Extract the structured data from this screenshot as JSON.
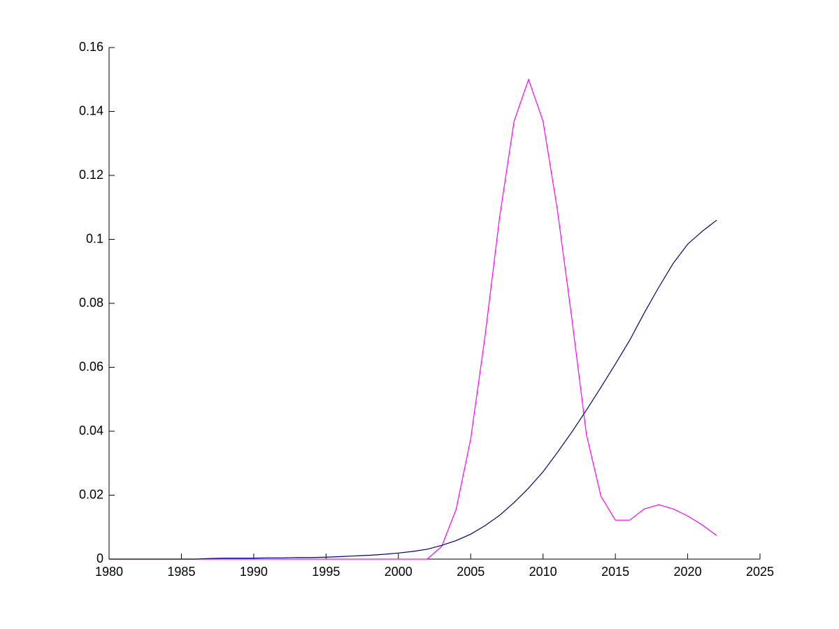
{
  "chart_data": {
    "type": "line",
    "x": [
      1980,
      1981,
      1982,
      1983,
      1984,
      1985,
      1986,
      1987,
      1988,
      1989,
      1990,
      1991,
      1992,
      1993,
      1994,
      1995,
      1996,
      1997,
      1998,
      1999,
      2000,
      2001,
      2002,
      2003,
      2004,
      2005,
      2006,
      2007,
      2008,
      2009,
      2010,
      2011,
      2012,
      2013,
      2014,
      2015,
      2016,
      2017,
      2018,
      2019,
      2020,
      2021,
      2022
    ],
    "series": [
      {
        "color": "#ff00ff",
        "values": [
          0,
          0,
          0,
          0,
          0,
          0,
          0,
          0,
          0,
          0,
          0,
          0,
          0,
          0,
          0,
          0,
          0,
          0,
          0,
          0,
          0,
          0,
          0,
          0.004,
          0.0157,
          0.0376,
          0.07,
          0.107,
          0.137,
          0.15,
          0.137,
          0.109,
          0.075,
          0.039,
          0.0197,
          0.0122,
          0.0122,
          0.0157,
          0.017,
          0.0157,
          0.0135,
          0.0107,
          0.0074
        ]
      },
      {
        "color": "#000080",
        "values": [
          0,
          0,
          0,
          0,
          0,
          0,
          0,
          0.0002,
          0.0003,
          0.0003,
          0.0003,
          0.0004,
          0.0004,
          0.0005,
          0.0005,
          0.0006,
          0.0008,
          0.001,
          0.0012,
          0.0015,
          0.0019,
          0.0024,
          0.0031,
          0.0043,
          0.0058,
          0.0078,
          0.0105,
          0.0137,
          0.0177,
          0.0222,
          0.0273,
          0.0334,
          0.0398,
          0.0466,
          0.0537,
          0.061,
          0.0685,
          0.077,
          0.085,
          0.0925,
          0.0985,
          0.1025,
          0.106
        ]
      }
    ],
    "xlim": [
      1980,
      2025
    ],
    "xticks": [
      1980,
      1985,
      1990,
      1995,
      2000,
      2005,
      2010,
      2015,
      2020,
      2025
    ],
    "ylim": [
      0,
      0.16
    ],
    "yticks": [
      0,
      0.02,
      0.04,
      0.06,
      0.08,
      0.1,
      0.12,
      0.14,
      0.16
    ]
  }
}
